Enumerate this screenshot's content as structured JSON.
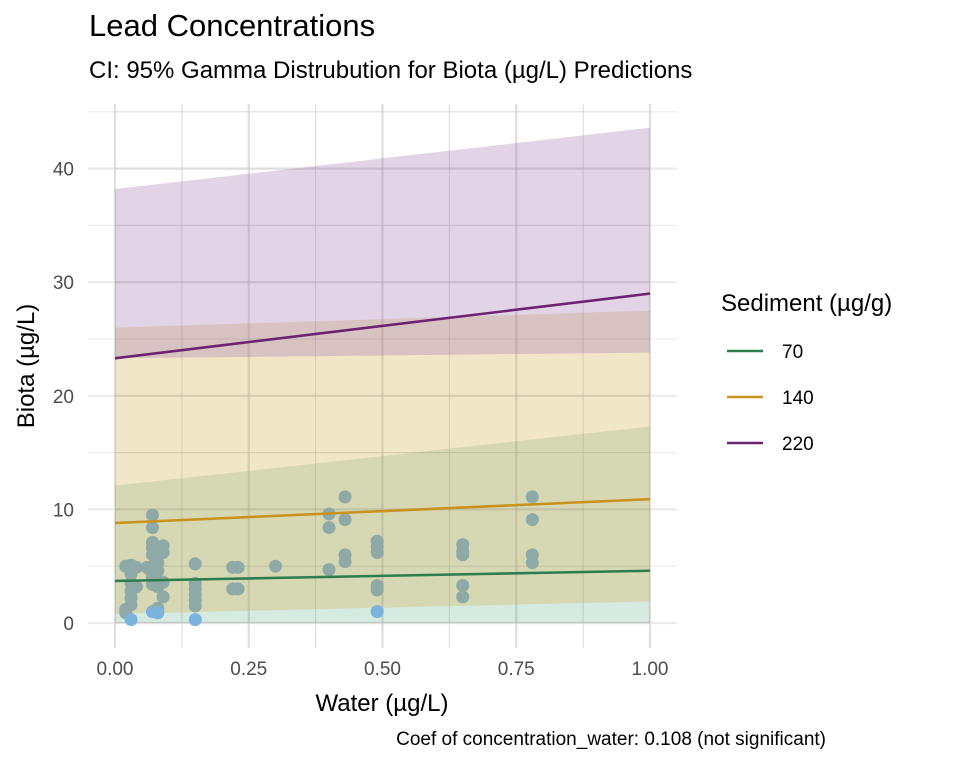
{
  "title": "Lead Concentrations",
  "subtitle": "CI: 95% Gamma Distrubution for Biota (µg/L) Predictions",
  "caption": "Coef of concentration_water: 0.108 (not significant)",
  "chart_data": {
    "type": "line",
    "title": "Lead Concentrations",
    "subtitle": "CI: 95% Gamma Distrubution for Biota (µg/L) Predictions",
    "xlabel": "Water (µg/L)",
    "ylabel": "Biota (µg/L)",
    "xlim": [
      -0.05,
      1.05
    ],
    "ylim": [
      -2,
      45
    ],
    "x_ticks": [
      0,
      0.25,
      0.5,
      0.75,
      1.0
    ],
    "x_tick_labels": [
      "0.00",
      "0.25",
      "0.50",
      "0.75",
      "1.00"
    ],
    "y_ticks": [
      0,
      10,
      20,
      30,
      40
    ],
    "y_tick_labels": [
      "0",
      "10",
      "20",
      "30",
      "40"
    ],
    "grid": true,
    "legend": {
      "title": "Sediment (µg/g)",
      "placement": "right"
    },
    "series": [
      {
        "name": "70",
        "color": "#2E7D4F",
        "fill": "#7FBFA0",
        "x": [
          0,
          1
        ],
        "fit": [
          3.7,
          4.6
        ],
        "lower": [
          0.0,
          0.0
        ],
        "upper": [
          12.1,
          17.3
        ]
      },
      {
        "name": "140",
        "color": "#C8921E",
        "fill": "#D9B25A",
        "x": [
          0,
          1
        ],
        "fit": [
          8.8,
          10.9
        ],
        "lower": [
          0.8,
          1.9
        ],
        "upper": [
          26.0,
          27.5
        ]
      },
      {
        "name": "220",
        "color": "#6A2470",
        "fill": "#A77DB3",
        "x": [
          0,
          1
        ],
        "fit": [
          23.3,
          29.0
        ],
        "lower": [
          23.3,
          23.8
        ],
        "upper": [
          38.2,
          43.6
        ]
      }
    ],
    "points": [
      {
        "x": 0.02,
        "y": 5.0
      },
      {
        "x": 0.02,
        "y": 1.2
      },
      {
        "x": 0.02,
        "y": 0.9
      },
      {
        "x": 0.03,
        "y": 5.1
      },
      {
        "x": 0.03,
        "y": 4.3
      },
      {
        "x": 0.03,
        "y": 3.5
      },
      {
        "x": 0.03,
        "y": 2.8
      },
      {
        "x": 0.03,
        "y": 2.2
      },
      {
        "x": 0.03,
        "y": 1.6
      },
      {
        "x": 0.03,
        "y": 0.3
      },
      {
        "x": 0.04,
        "y": 4.9
      },
      {
        "x": 0.04,
        "y": 3.2
      },
      {
        "x": 0.06,
        "y": 4.9
      },
      {
        "x": 0.065,
        "y": 4.7
      },
      {
        "x": 0.07,
        "y": 9.5
      },
      {
        "x": 0.07,
        "y": 8.4
      },
      {
        "x": 0.07,
        "y": 7.1
      },
      {
        "x": 0.07,
        "y": 6.6
      },
      {
        "x": 0.07,
        "y": 6.0
      },
      {
        "x": 0.07,
        "y": 5.0
      },
      {
        "x": 0.07,
        "y": 4.0
      },
      {
        "x": 0.07,
        "y": 3.4
      },
      {
        "x": 0.07,
        "y": 1.0
      },
      {
        "x": 0.08,
        "y": 5.3
      },
      {
        "x": 0.08,
        "y": 4.6
      },
      {
        "x": 0.08,
        "y": 3.2
      },
      {
        "x": 0.08,
        "y": 1.3
      },
      {
        "x": 0.08,
        "y": 0.9
      },
      {
        "x": 0.09,
        "y": 6.8
      },
      {
        "x": 0.09,
        "y": 6.2
      },
      {
        "x": 0.09,
        "y": 3.6
      },
      {
        "x": 0.09,
        "y": 2.3
      },
      {
        "x": 0.15,
        "y": 5.2
      },
      {
        "x": 0.15,
        "y": 3.5
      },
      {
        "x": 0.15,
        "y": 3.0
      },
      {
        "x": 0.15,
        "y": 2.5
      },
      {
        "x": 0.15,
        "y": 2.0
      },
      {
        "x": 0.15,
        "y": 1.5
      },
      {
        "x": 0.15,
        "y": 0.3
      },
      {
        "x": 0.22,
        "y": 4.9
      },
      {
        "x": 0.22,
        "y": 3.0
      },
      {
        "x": 0.23,
        "y": 4.9
      },
      {
        "x": 0.23,
        "y": 3.0
      },
      {
        "x": 0.3,
        "y": 5.0
      },
      {
        "x": 0.4,
        "y": 9.6
      },
      {
        "x": 0.4,
        "y": 8.4
      },
      {
        "x": 0.4,
        "y": 4.7
      },
      {
        "x": 0.43,
        "y": 11.1
      },
      {
        "x": 0.43,
        "y": 9.1
      },
      {
        "x": 0.43,
        "y": 6.0
      },
      {
        "x": 0.43,
        "y": 5.4
      },
      {
        "x": 0.49,
        "y": 7.2
      },
      {
        "x": 0.49,
        "y": 6.7
      },
      {
        "x": 0.49,
        "y": 6.2
      },
      {
        "x": 0.49,
        "y": 3.3
      },
      {
        "x": 0.49,
        "y": 2.9
      },
      {
        "x": 0.49,
        "y": 1.0
      },
      {
        "x": 0.65,
        "y": 6.9
      },
      {
        "x": 0.65,
        "y": 6.3
      },
      {
        "x": 0.65,
        "y": 6.0
      },
      {
        "x": 0.65,
        "y": 3.3
      },
      {
        "x": 0.65,
        "y": 2.3
      },
      {
        "x": 0.78,
        "y": 11.1
      },
      {
        "x": 0.78,
        "y": 9.1
      },
      {
        "x": 0.78,
        "y": 6.0
      },
      {
        "x": 0.78,
        "y": 5.3
      }
    ],
    "point_color": "#8FA9A6",
    "point_color_low": "#7BB3DE"
  }
}
